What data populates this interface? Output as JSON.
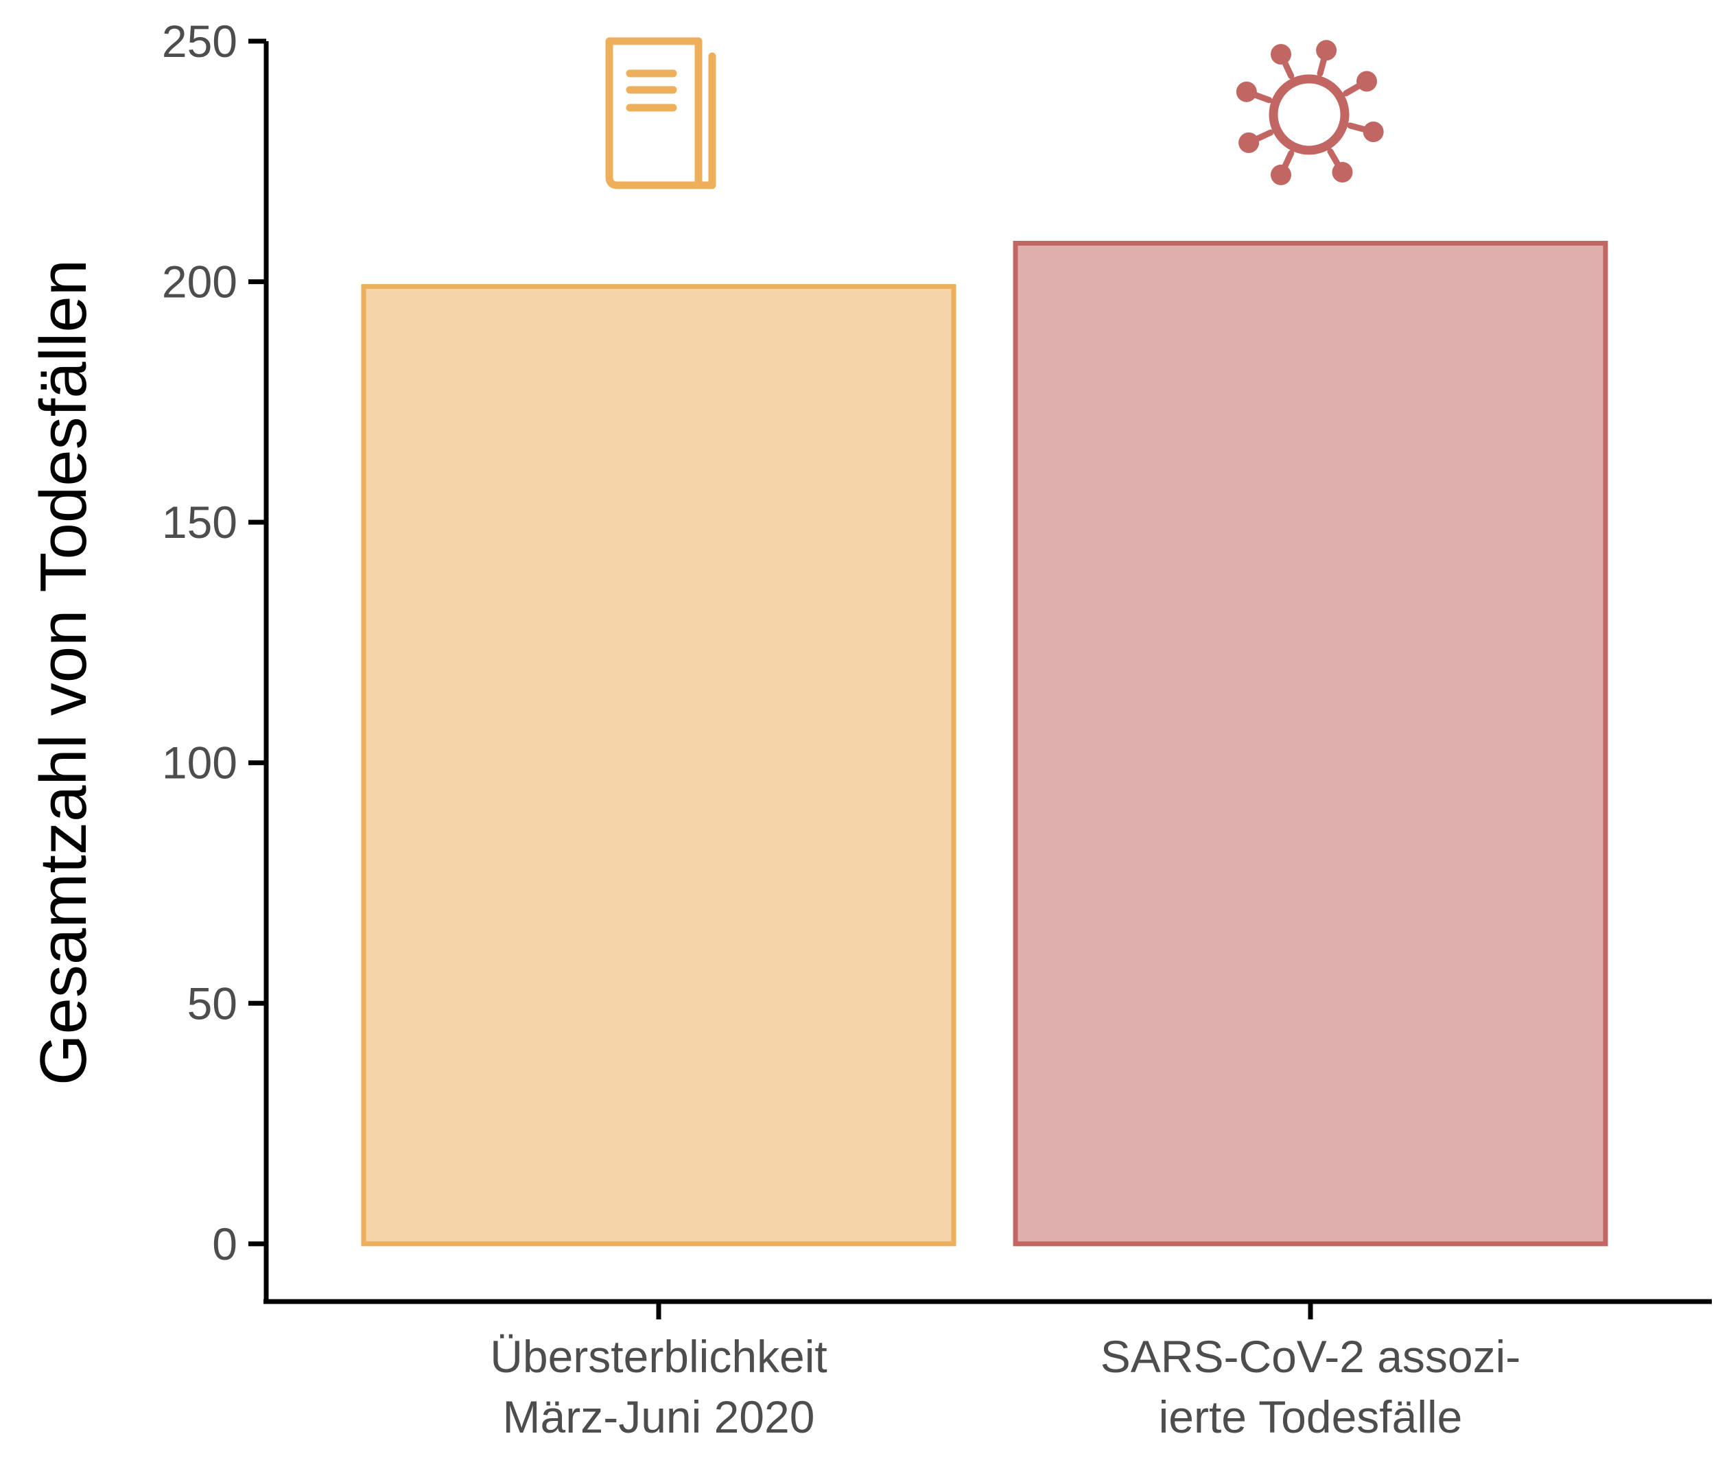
{
  "chart_data": {
    "type": "bar",
    "ylabel": "Gesamtzahl von Todesfällen",
    "xlabel": "",
    "ylim": [
      -12,
      250
    ],
    "yticks": [
      0,
      50,
      100,
      150,
      200,
      250
    ],
    "grid": false,
    "legend": "none",
    "categories": [
      {
        "label_lines": [
          "Übersterblichkeit",
          "März-Juni 2020"
        ]
      },
      {
        "label_lines": [
          "SARS-CoV-2 assozi-",
          "ierte Todesfälle"
        ]
      }
    ],
    "values": [
      199,
      208
    ],
    "colors": {
      "fill": [
        "#f5d5a8",
        "#dfafae"
      ],
      "stroke": [
        "#eeaf5b",
        "#c26663"
      ]
    },
    "icons": [
      "book-icon",
      "virus-icon"
    ]
  }
}
